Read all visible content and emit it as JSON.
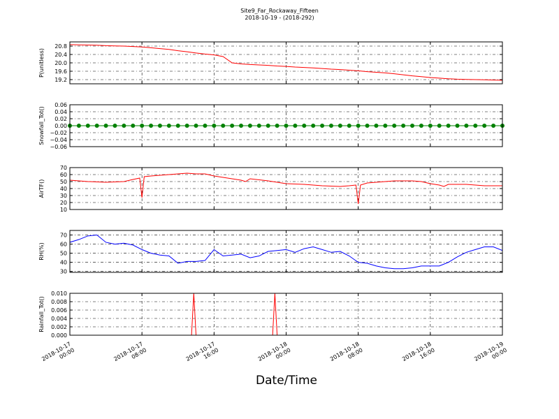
{
  "title": "Site9_Far_Rockaway_Fifteen",
  "subtitle": "2018-10-19 - (2018-292)",
  "x_label": "Date/Time",
  "xlim": [
    "2018-10-17 00:00",
    "2018-10-19 00:00"
  ],
  "xticks": [
    {
      "value": "2018-10-17 00:00",
      "label": [
        "2018-10-17",
        "00:00"
      ]
    },
    {
      "value": "2018-10-17 08:00",
      "label": [
        "2018-10-17",
        "08:00"
      ]
    },
    {
      "value": "2018-10-17 16:00",
      "label": [
        "2018-10-17",
        "16:00"
      ]
    },
    {
      "value": "2018-10-18 00:00",
      "label": [
        "2018-10-18",
        "00:00"
      ]
    },
    {
      "value": "2018-10-18 08:00",
      "label": [
        "2018-10-18",
        "08:00"
      ]
    },
    {
      "value": "2018-10-18 16:00",
      "label": [
        "2018-10-18",
        "16:00"
      ]
    },
    {
      "value": "2018-10-19 00:00",
      "label": [
        "2018-10-19",
        "00:00"
      ]
    }
  ],
  "chart_data": [
    {
      "type": "line",
      "y_label": "P(unitless)",
      "color": "#ff0000",
      "grid": true,
      "ylim": [
        19.0,
        21.0
      ],
      "yticks": [
        19.2,
        19.6,
        {
          "value": 20.0,
          "label": "20.0"
        },
        20.4,
        20.8
      ],
      "x": [
        "2018-10-17 00:00",
        "2018-10-17 01:00",
        "2018-10-17 02:00",
        "2018-10-17 03:00",
        "2018-10-17 04:00",
        "2018-10-17 05:00",
        "2018-10-17 06:00",
        "2018-10-17 07:00",
        "2018-10-17 08:00",
        "2018-10-17 09:00",
        "2018-10-17 10:00",
        "2018-10-17 11:00",
        "2018-10-17 12:00",
        "2018-10-17 13:00",
        "2018-10-17 14:00",
        "2018-10-17 15:00",
        "2018-10-17 16:00",
        "2018-10-17 17:00",
        "2018-10-17 18:00",
        "2018-10-17 19:00",
        "2018-10-17 20:00",
        "2018-10-17 21:00",
        "2018-10-17 22:00",
        "2018-10-17 23:00",
        "2018-10-18 00:00",
        "2018-10-18 01:00",
        "2018-10-18 02:00",
        "2018-10-18 03:00",
        "2018-10-18 04:00",
        "2018-10-18 05:00",
        "2018-10-18 06:00",
        "2018-10-18 07:00",
        "2018-10-18 08:00",
        "2018-10-18 09:00",
        "2018-10-18 10:00",
        "2018-10-18 11:00",
        "2018-10-18 12:00",
        "2018-10-18 13:00",
        "2018-10-18 14:00",
        "2018-10-18 15:00",
        "2018-10-18 16:00",
        "2018-10-18 17:00",
        "2018-10-18 18:00",
        "2018-10-18 19:00",
        "2018-10-18 20:00",
        "2018-10-18 21:00",
        "2018-10-18 22:00",
        "2018-10-18 23:00",
        "2018-10-19 00:00"
      ],
      "values": [
        20.87,
        20.86,
        20.85,
        20.84,
        20.82,
        20.81,
        20.8,
        20.78,
        20.76,
        20.72,
        20.68,
        20.64,
        20.58,
        20.53,
        20.47,
        20.42,
        20.38,
        20.3,
        20.0,
        19.95,
        19.92,
        19.9,
        19.88,
        19.85,
        19.83,
        19.8,
        19.78,
        19.76,
        19.73,
        19.7,
        19.68,
        19.65,
        19.62,
        19.58,
        19.55,
        19.52,
        19.48,
        19.43,
        19.38,
        19.34,
        19.3,
        19.27,
        19.24,
        19.22,
        19.21,
        19.2,
        19.19,
        19.18,
        19.17
      ]
    },
    {
      "type": "line",
      "y_label": "Snowfall_Tot()",
      "color": "#008000",
      "marker": true,
      "grid": true,
      "ylim": [
        -0.06,
        0.06
      ],
      "yticks": [
        {
          "value": -0.06,
          "label": "−0.06"
        },
        {
          "value": -0.04,
          "label": "−0.04"
        },
        {
          "value": -0.02,
          "label": "−0.02"
        },
        {
          "value": 0,
          "label": "0.00"
        },
        {
          "value": 0.02,
          "label": "0.02"
        },
        {
          "value": 0.04,
          "label": "0.04"
        },
        {
          "value": 0.06,
          "label": "0.06"
        }
      ],
      "x": [
        "2018-10-17 00:00",
        "2018-10-17 01:00",
        "2018-10-17 02:00",
        "2018-10-17 03:00",
        "2018-10-17 04:00",
        "2018-10-17 05:00",
        "2018-10-17 06:00",
        "2018-10-17 07:00",
        "2018-10-17 08:00",
        "2018-10-17 09:00",
        "2018-10-17 10:00",
        "2018-10-17 11:00",
        "2018-10-17 12:00",
        "2018-10-17 13:00",
        "2018-10-17 14:00",
        "2018-10-17 15:00",
        "2018-10-17 16:00",
        "2018-10-17 17:00",
        "2018-10-17 18:00",
        "2018-10-17 19:00",
        "2018-10-17 20:00",
        "2018-10-17 21:00",
        "2018-10-17 22:00",
        "2018-10-17 23:00",
        "2018-10-18 00:00",
        "2018-10-18 01:00",
        "2018-10-18 02:00",
        "2018-10-18 03:00",
        "2018-10-18 04:00",
        "2018-10-18 05:00",
        "2018-10-18 06:00",
        "2018-10-18 07:00",
        "2018-10-18 08:00",
        "2018-10-18 09:00",
        "2018-10-18 10:00",
        "2018-10-18 11:00",
        "2018-10-18 12:00",
        "2018-10-18 13:00",
        "2018-10-18 14:00",
        "2018-10-18 15:00",
        "2018-10-18 16:00",
        "2018-10-18 17:00",
        "2018-10-18 18:00",
        "2018-10-18 19:00",
        "2018-10-18 20:00",
        "2018-10-18 21:00",
        "2018-10-18 22:00",
        "2018-10-18 23:00",
        "2018-10-19 00:00"
      ],
      "values": [
        0,
        0,
        0,
        0,
        0,
        0,
        0,
        0,
        0,
        0,
        0,
        0,
        0,
        0,
        0,
        0,
        0,
        0,
        0,
        0,
        0,
        0,
        0,
        0,
        0,
        0,
        0,
        0,
        0,
        0,
        0,
        0,
        0,
        0,
        0,
        0,
        0,
        0,
        0,
        0,
        0,
        0,
        0,
        0,
        0,
        0,
        0,
        0,
        0
      ]
    },
    {
      "type": "line",
      "y_label": "AirTF()",
      "color": "#ff0000",
      "grid": true,
      "ylim": [
        10,
        70
      ],
      "yticks": [
        10,
        20,
        30,
        40,
        50,
        60,
        70
      ],
      "x": [
        "2018-10-17 00:00",
        "2018-10-17 02:00",
        "2018-10-17 04:00",
        "2018-10-17 06:00",
        "2018-10-17 07:00",
        "2018-10-17 07:45",
        "2018-10-17 08:00",
        "2018-10-17 08:15",
        "2018-10-17 09:00",
        "2018-10-17 11:00",
        "2018-10-17 12:00",
        "2018-10-17 13:00",
        "2018-10-17 14:00",
        "2018-10-17 15:00",
        "2018-10-17 16:00",
        "2018-10-17 17:00",
        "2018-10-17 18:00",
        "2018-10-17 19:00",
        "2018-10-17 19:30",
        "2018-10-17 20:00",
        "2018-10-17 22:00",
        "2018-10-18 00:00",
        "2018-10-18 02:00",
        "2018-10-18 04:00",
        "2018-10-18 06:00",
        "2018-10-18 07:00",
        "2018-10-18 07:45",
        "2018-10-18 08:00",
        "2018-10-18 08:15",
        "2018-10-18 09:00",
        "2018-10-18 11:00",
        "2018-10-18 12:00",
        "2018-10-18 14:00",
        "2018-10-18 15:00",
        "2018-10-18 16:00",
        "2018-10-18 17:00",
        "2018-10-18 17:30",
        "2018-10-18 18:00",
        "2018-10-18 20:00",
        "2018-10-18 22:00",
        "2018-10-19 00:00"
      ],
      "values": [
        52,
        50,
        49,
        50,
        53,
        55,
        27,
        57,
        58,
        60,
        61,
        62,
        61,
        61,
        58,
        56,
        54,
        52,
        50,
        54,
        51,
        47,
        46,
        44,
        43,
        44,
        45,
        18,
        45,
        48,
        50,
        51,
        51,
        50,
        47,
        45,
        43,
        46,
        46,
        44,
        44
      ]
    },
    {
      "type": "line",
      "y_label": "RH(%)",
      "color": "#0000ff",
      "grid": true,
      "ylim": [
        29,
        75
      ],
      "yticks": [
        30,
        40,
        50,
        60,
        70
      ],
      "x": [
        "2018-10-17 00:00",
        "2018-10-17 01:00",
        "2018-10-17 02:00",
        "2018-10-17 03:00",
        "2018-10-17 04:00",
        "2018-10-17 05:00",
        "2018-10-17 06:00",
        "2018-10-17 07:00",
        "2018-10-17 08:00",
        "2018-10-17 09:00",
        "2018-10-17 10:00",
        "2018-10-17 11:00",
        "2018-10-17 12:00",
        "2018-10-17 13:00",
        "2018-10-17 14:00",
        "2018-10-17 15:00",
        "2018-10-17 16:00",
        "2018-10-17 17:00",
        "2018-10-17 18:00",
        "2018-10-17 19:00",
        "2018-10-17 20:00",
        "2018-10-17 21:00",
        "2018-10-17 22:00",
        "2018-10-17 23:00",
        "2018-10-18 00:00",
        "2018-10-18 01:00",
        "2018-10-18 02:00",
        "2018-10-18 03:00",
        "2018-10-18 04:00",
        "2018-10-18 05:00",
        "2018-10-18 06:00",
        "2018-10-18 07:00",
        "2018-10-18 08:00",
        "2018-10-18 09:00",
        "2018-10-18 10:00",
        "2018-10-18 11:00",
        "2018-10-18 12:00",
        "2018-10-18 13:00",
        "2018-10-18 14:00",
        "2018-10-18 15:00",
        "2018-10-18 16:00",
        "2018-10-18 17:00",
        "2018-10-18 18:00",
        "2018-10-18 19:00",
        "2018-10-18 20:00",
        "2018-10-18 21:00",
        "2018-10-18 22:00",
        "2018-10-18 23:00",
        "2018-10-19 00:00"
      ],
      "values": [
        62,
        65,
        69,
        70,
        62,
        60,
        61,
        59,
        54,
        50,
        48,
        47,
        39,
        41,
        41,
        42,
        54,
        47,
        48,
        49,
        45,
        47,
        52,
        53,
        54,
        51,
        55,
        57,
        54,
        51,
        52,
        47,
        40,
        39,
        36,
        34,
        33,
        33,
        34,
        36,
        36,
        36,
        40,
        46,
        51,
        54,
        57,
        57,
        53
      ]
    },
    {
      "type": "line",
      "y_label": "Rainfall_Tot()",
      "color": "#ff0000",
      "grid": true,
      "ylim": [
        0,
        0.01
      ],
      "yticks": [
        {
          "value": 0,
          "label": "0.000"
        },
        {
          "value": 0.002,
          "label": "0.002"
        },
        {
          "value": 0.004,
          "label": "0.004"
        },
        {
          "value": 0.006,
          "label": "0.006"
        },
        {
          "value": 0.008,
          "label": "0.008"
        },
        {
          "value": 0.01,
          "label": "0.010"
        }
      ],
      "x": [
        "2018-10-17 00:00",
        "2018-10-17 13:30",
        "2018-10-17 13:45",
        "2018-10-17 14:00",
        "2018-10-17 22:30",
        "2018-10-17 22:45",
        "2018-10-17 23:00",
        "2018-10-19 00:00"
      ],
      "values": [
        0,
        0,
        0.01,
        0,
        0,
        0.01,
        0,
        0
      ]
    }
  ]
}
